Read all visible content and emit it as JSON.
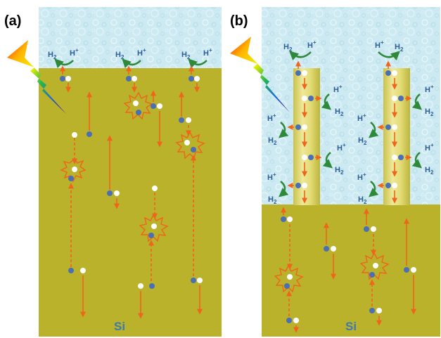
{
  "panels": [
    {
      "id": "a",
      "label": "(a)",
      "substrate_label": "Si"
    },
    {
      "id": "b",
      "label": "(b)",
      "substrate_label": "Si"
    }
  ],
  "species": {
    "hydrogen_element": "H",
    "hydrogen_sub": "2",
    "proton_element": "H",
    "proton_sup": "+"
  },
  "colors": {
    "silicon": "#b9b22a",
    "electrolyte": "#cdeaf3",
    "pillar": "#ddd66e",
    "carrier_arrow": "#f0641c",
    "reaction_arrow": "#2e8a3a",
    "chem_text": "#2e5e96",
    "electron": "#4a6fb5",
    "hole": "#ffffff",
    "substrate_text": "#3c7ab0"
  },
  "icons": [
    "lightning-bolt-icon",
    "recombination-star-icon",
    "electron-dot-icon",
    "hole-dot-icon"
  ]
}
